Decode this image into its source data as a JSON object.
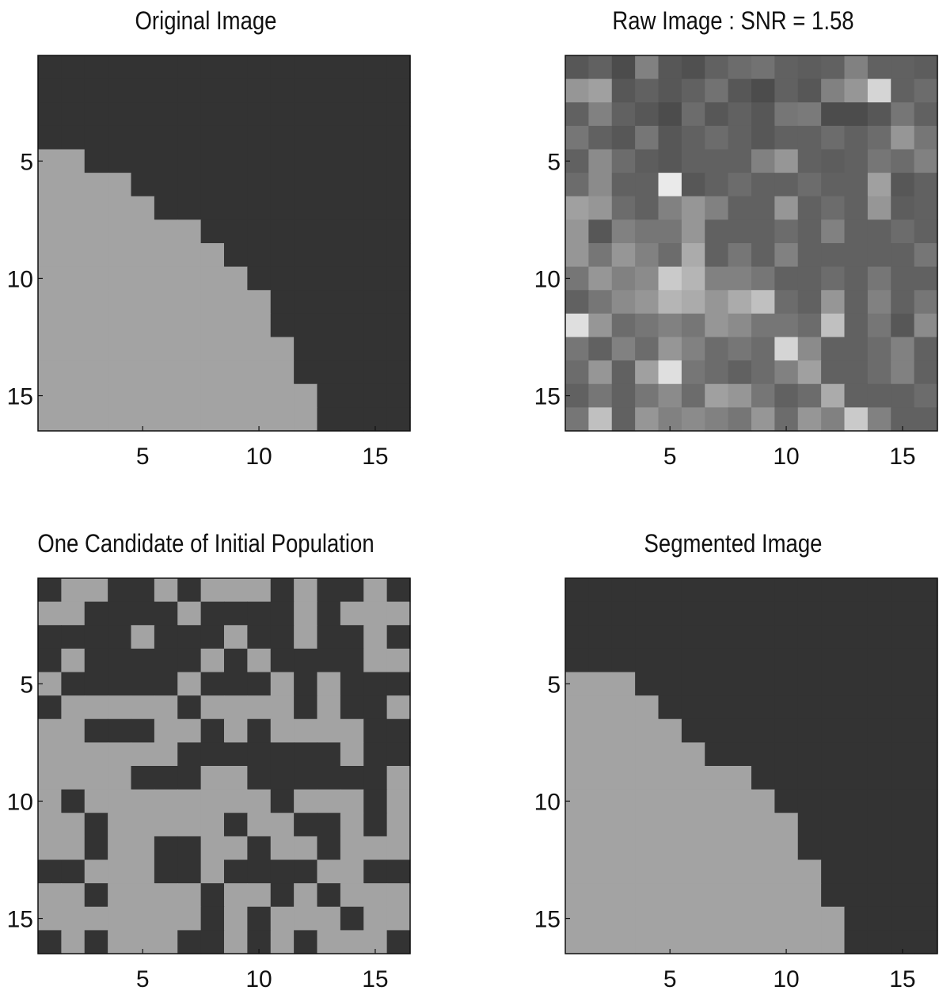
{
  "chart_data": [
    {
      "type": "heatmap",
      "title": "Original Image",
      "xticks": [
        5,
        10,
        15
      ],
      "yticks": [
        5,
        10,
        15
      ],
      "xlim": [
        0.5,
        16.5
      ],
      "ylim": [
        0.5,
        16.5
      ],
      "rows": 16,
      "cols": 16,
      "values": [
        [
          1,
          1,
          1,
          1,
          1,
          1,
          1,
          1,
          1,
          1,
          1,
          1,
          1,
          1,
          1,
          1
        ],
        [
          1,
          1,
          1,
          1,
          1,
          1,
          1,
          1,
          1,
          1,
          1,
          1,
          1,
          1,
          1,
          1
        ],
        [
          1,
          1,
          1,
          1,
          1,
          1,
          1,
          1,
          1,
          1,
          1,
          1,
          1,
          1,
          1,
          1
        ],
        [
          1,
          1,
          1,
          1,
          1,
          1,
          1,
          1,
          1,
          1,
          1,
          1,
          1,
          1,
          1,
          1
        ],
        [
          2,
          2,
          1,
          1,
          1,
          1,
          1,
          1,
          1,
          1,
          1,
          1,
          1,
          1,
          1,
          1
        ],
        [
          2,
          2,
          2,
          2,
          1,
          1,
          1,
          1,
          1,
          1,
          1,
          1,
          1,
          1,
          1,
          1
        ],
        [
          2,
          2,
          2,
          2,
          2,
          1,
          1,
          1,
          1,
          1,
          1,
          1,
          1,
          1,
          1,
          1
        ],
        [
          2,
          2,
          2,
          2,
          2,
          2,
          2,
          1,
          1,
          1,
          1,
          1,
          1,
          1,
          1,
          1
        ],
        [
          2,
          2,
          2,
          2,
          2,
          2,
          2,
          2,
          1,
          1,
          1,
          1,
          1,
          1,
          1,
          1
        ],
        [
          2,
          2,
          2,
          2,
          2,
          2,
          2,
          2,
          2,
          1,
          1,
          1,
          1,
          1,
          1,
          1
        ],
        [
          2,
          2,
          2,
          2,
          2,
          2,
          2,
          2,
          2,
          2,
          1,
          1,
          1,
          1,
          1,
          1
        ],
        [
          2,
          2,
          2,
          2,
          2,
          2,
          2,
          2,
          2,
          2,
          1,
          1,
          1,
          1,
          1,
          1
        ],
        [
          2,
          2,
          2,
          2,
          2,
          2,
          2,
          2,
          2,
          2,
          2,
          1,
          1,
          1,
          1,
          1
        ],
        [
          2,
          2,
          2,
          2,
          2,
          2,
          2,
          2,
          2,
          2,
          2,
          1,
          1,
          1,
          1,
          1
        ],
        [
          2,
          2,
          2,
          2,
          2,
          2,
          2,
          2,
          2,
          2,
          2,
          2,
          1,
          1,
          1,
          1
        ],
        [
          2,
          2,
          2,
          2,
          2,
          2,
          2,
          2,
          2,
          2,
          2,
          2,
          1,
          1,
          1,
          1
        ]
      ]
    },
    {
      "type": "heatmap",
      "title": "Raw Image : SNR = 1.58",
      "xticks": [
        5,
        10,
        15
      ],
      "yticks": [
        5,
        10,
        15
      ],
      "xlim": [
        0.5,
        16.5
      ],
      "ylim": [
        0.5,
        16.5
      ],
      "rows": 16,
      "cols": 16,
      "values": [
        [
          0.25,
          0.3,
          0.2,
          0.45,
          0.25,
          0.22,
          0.3,
          0.35,
          0.38,
          0.3,
          0.28,
          0.3,
          0.45,
          0.3,
          0.3,
          0.28
        ],
        [
          0.55,
          0.6,
          0.25,
          0.3,
          0.25,
          0.3,
          0.38,
          0.25,
          0.2,
          0.3,
          0.25,
          0.45,
          0.55,
          0.85,
          0.3,
          0.35
        ],
        [
          0.3,
          0.45,
          0.3,
          0.25,
          0.2,
          0.35,
          0.25,
          0.3,
          0.25,
          0.4,
          0.42,
          0.2,
          0.2,
          0.25,
          0.4,
          0.3
        ],
        [
          0.4,
          0.3,
          0.25,
          0.4,
          0.25,
          0.3,
          0.35,
          0.3,
          0.25,
          0.3,
          0.3,
          0.35,
          0.3,
          0.35,
          0.55,
          0.4
        ],
        [
          0.3,
          0.5,
          0.35,
          0.28,
          0.25,
          0.3,
          0.3,
          0.3,
          0.45,
          0.55,
          0.3,
          0.28,
          0.3,
          0.4,
          0.35,
          0.45
        ],
        [
          0.35,
          0.5,
          0.3,
          0.3,
          0.95,
          0.25,
          0.3,
          0.35,
          0.3,
          0.3,
          0.35,
          0.3,
          0.3,
          0.6,
          0.25,
          0.3
        ],
        [
          0.6,
          0.55,
          0.35,
          0.3,
          0.45,
          0.55,
          0.45,
          0.3,
          0.3,
          0.55,
          0.3,
          0.35,
          0.3,
          0.55,
          0.28,
          0.3
        ],
        [
          0.55,
          0.25,
          0.45,
          0.4,
          0.4,
          0.55,
          0.3,
          0.3,
          0.3,
          0.35,
          0.3,
          0.45,
          0.3,
          0.3,
          0.35,
          0.3
        ],
        [
          0.55,
          0.4,
          0.55,
          0.45,
          0.35,
          0.65,
          0.3,
          0.4,
          0.3,
          0.45,
          0.3,
          0.3,
          0.3,
          0.3,
          0.3,
          0.4
        ],
        [
          0.4,
          0.55,
          0.45,
          0.5,
          0.8,
          0.7,
          0.45,
          0.45,
          0.4,
          0.3,
          0.3,
          0.35,
          0.3,
          0.4,
          0.3,
          0.3
        ],
        [
          0.3,
          0.4,
          0.5,
          0.55,
          0.7,
          0.65,
          0.55,
          0.65,
          0.75,
          0.35,
          0.3,
          0.55,
          0.3,
          0.45,
          0.3,
          0.4
        ],
        [
          0.9,
          0.55,
          0.35,
          0.4,
          0.45,
          0.4,
          0.55,
          0.5,
          0.4,
          0.4,
          0.35,
          0.75,
          0.3,
          0.4,
          0.25,
          0.5
        ],
        [
          0.4,
          0.3,
          0.45,
          0.35,
          0.55,
          0.45,
          0.35,
          0.4,
          0.35,
          0.85,
          0.5,
          0.3,
          0.3,
          0.35,
          0.45,
          0.3
        ],
        [
          0.35,
          0.55,
          0.3,
          0.6,
          0.9,
          0.4,
          0.35,
          0.3,
          0.35,
          0.45,
          0.6,
          0.3,
          0.3,
          0.35,
          0.45,
          0.3
        ],
        [
          0.3,
          0.4,
          0.3,
          0.4,
          0.5,
          0.35,
          0.6,
          0.55,
          0.4,
          0.3,
          0.35,
          0.65,
          0.3,
          0.3,
          0.3,
          0.35
        ],
        [
          0.4,
          0.75,
          0.3,
          0.55,
          0.45,
          0.5,
          0.45,
          0.4,
          0.55,
          0.35,
          0.55,
          0.45,
          0.8,
          0.45,
          0.3,
          0.3
        ]
      ]
    },
    {
      "type": "heatmap",
      "title": "One Candidate of Initial Population",
      "xticks": [
        5,
        10,
        15
      ],
      "yticks": [
        5,
        10,
        15
      ],
      "xlim": [
        0.5,
        16.5
      ],
      "ylim": [
        0.5,
        16.5
      ],
      "rows": 16,
      "cols": 16,
      "values": [
        [
          1,
          2,
          2,
          1,
          1,
          2,
          1,
          2,
          2,
          2,
          1,
          2,
          1,
          1,
          2,
          1
        ],
        [
          2,
          2,
          1,
          1,
          1,
          1,
          2,
          1,
          1,
          1,
          1,
          2,
          1,
          2,
          2,
          2
        ],
        [
          1,
          1,
          1,
          1,
          2,
          1,
          1,
          1,
          2,
          1,
          1,
          2,
          1,
          1,
          2,
          1
        ],
        [
          1,
          2,
          1,
          1,
          1,
          1,
          1,
          2,
          1,
          2,
          1,
          1,
          1,
          1,
          2,
          2
        ],
        [
          2,
          1,
          1,
          1,
          1,
          1,
          2,
          1,
          1,
          1,
          2,
          1,
          2,
          1,
          1,
          1
        ],
        [
          1,
          2,
          2,
          2,
          2,
          2,
          1,
          2,
          2,
          2,
          2,
          1,
          2,
          1,
          1,
          2
        ],
        [
          2,
          2,
          1,
          1,
          1,
          2,
          2,
          1,
          2,
          1,
          2,
          2,
          2,
          2,
          1,
          1
        ],
        [
          2,
          2,
          2,
          2,
          2,
          2,
          1,
          1,
          1,
          1,
          1,
          1,
          1,
          2,
          1,
          1
        ],
        [
          2,
          2,
          2,
          2,
          1,
          1,
          1,
          2,
          2,
          1,
          1,
          1,
          1,
          1,
          1,
          2
        ],
        [
          2,
          1,
          2,
          2,
          2,
          2,
          2,
          2,
          2,
          2,
          1,
          2,
          2,
          2,
          1,
          2
        ],
        [
          2,
          2,
          1,
          2,
          2,
          2,
          2,
          2,
          1,
          2,
          2,
          1,
          1,
          2,
          1,
          2
        ],
        [
          2,
          2,
          1,
          2,
          2,
          1,
          1,
          2,
          2,
          1,
          2,
          2,
          1,
          2,
          2,
          2
        ],
        [
          1,
          1,
          2,
          2,
          2,
          1,
          1,
          2,
          1,
          1,
          1,
          1,
          2,
          2,
          1,
          1
        ],
        [
          2,
          2,
          1,
          2,
          2,
          2,
          2,
          1,
          2,
          2,
          1,
          2,
          1,
          2,
          2,
          2
        ],
        [
          2,
          2,
          2,
          2,
          2,
          2,
          2,
          1,
          2,
          1,
          2,
          2,
          2,
          1,
          2,
          2
        ],
        [
          1,
          2,
          1,
          2,
          2,
          2,
          1,
          1,
          2,
          1,
          2,
          1,
          2,
          2,
          2,
          1
        ]
      ]
    },
    {
      "type": "heatmap",
      "title": "Segmented Image",
      "xticks": [
        5,
        10,
        15
      ],
      "yticks": [
        5,
        10,
        15
      ],
      "xlim": [
        0.5,
        16.5
      ],
      "ylim": [
        0.5,
        16.5
      ],
      "rows": 16,
      "cols": 16,
      "values": [
        [
          1,
          1,
          1,
          1,
          1,
          1,
          1,
          1,
          1,
          1,
          1,
          1,
          1,
          1,
          1,
          1
        ],
        [
          1,
          1,
          1,
          1,
          1,
          1,
          1,
          1,
          1,
          1,
          1,
          1,
          1,
          1,
          1,
          1
        ],
        [
          1,
          1,
          1,
          1,
          1,
          1,
          1,
          1,
          1,
          1,
          1,
          1,
          1,
          1,
          1,
          1
        ],
        [
          1,
          1,
          1,
          1,
          1,
          1,
          1,
          1,
          1,
          1,
          1,
          1,
          1,
          1,
          1,
          1
        ],
        [
          2,
          2,
          2,
          1,
          1,
          1,
          1,
          1,
          1,
          1,
          1,
          1,
          1,
          1,
          1,
          1
        ],
        [
          2,
          2,
          2,
          2,
          1,
          1,
          1,
          1,
          1,
          1,
          1,
          1,
          1,
          1,
          1,
          1
        ],
        [
          2,
          2,
          2,
          2,
          2,
          1,
          1,
          1,
          1,
          1,
          1,
          1,
          1,
          1,
          1,
          1
        ],
        [
          2,
          2,
          2,
          2,
          2,
          2,
          1,
          1,
          1,
          1,
          1,
          1,
          1,
          1,
          1,
          1
        ],
        [
          2,
          2,
          2,
          2,
          2,
          2,
          2,
          2,
          1,
          1,
          1,
          1,
          1,
          1,
          1,
          1
        ],
        [
          2,
          2,
          2,
          2,
          2,
          2,
          2,
          2,
          2,
          1,
          1,
          1,
          1,
          1,
          1,
          1
        ],
        [
          2,
          2,
          2,
          2,
          2,
          2,
          2,
          2,
          2,
          2,
          1,
          1,
          1,
          1,
          1,
          1
        ],
        [
          2,
          2,
          2,
          2,
          2,
          2,
          2,
          2,
          2,
          2,
          1,
          1,
          1,
          1,
          1,
          1
        ],
        [
          2,
          2,
          2,
          2,
          2,
          2,
          2,
          2,
          2,
          2,
          2,
          1,
          1,
          1,
          1,
          1
        ],
        [
          2,
          2,
          2,
          2,
          2,
          2,
          2,
          2,
          2,
          2,
          2,
          1,
          1,
          1,
          1,
          1
        ],
        [
          2,
          2,
          2,
          2,
          2,
          2,
          2,
          2,
          2,
          2,
          2,
          2,
          1,
          1,
          1,
          1
        ],
        [
          2,
          2,
          2,
          2,
          2,
          2,
          2,
          2,
          2,
          2,
          2,
          2,
          1,
          1,
          1,
          1
        ]
      ]
    }
  ],
  "colors": {
    "dark": "#333333",
    "light": "#a3a3a3",
    "raw_min": "#222222",
    "raw_max": "#f4f4f4"
  }
}
